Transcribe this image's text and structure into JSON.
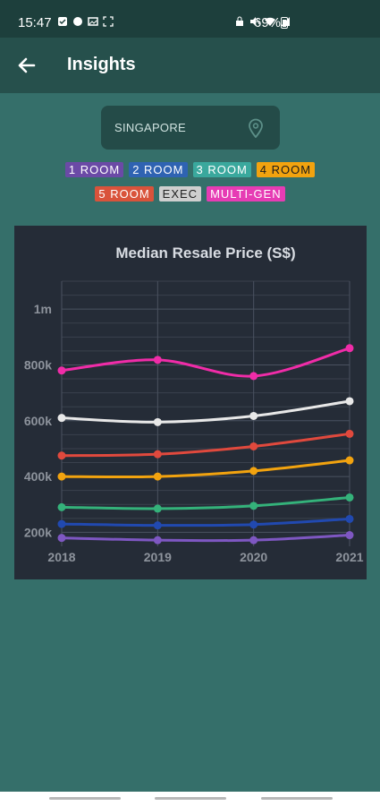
{
  "status": {
    "time": "15:47",
    "battery": "69%"
  },
  "header": {
    "title": "Insights"
  },
  "location": {
    "label": "SINGAPORE"
  },
  "legend": [
    {
      "label": "1 ROOM",
      "bg": "#6b4aa6",
      "fg": "#ffffff"
    },
    {
      "label": "2 ROOM",
      "bg": "#2f63b2",
      "fg": "#ffffff"
    },
    {
      "label": "3 ROOM",
      "bg": "#3aa89d",
      "fg": "#ffffff"
    },
    {
      "label": "4 ROOM",
      "bg": "#f2a30f",
      "fg": "#1b1b1b"
    },
    {
      "label": "5 ROOM",
      "bg": "#d9533b",
      "fg": "#ffffff"
    },
    {
      "label": "EXEC",
      "bg": "#cfcfcf",
      "fg": "#222222"
    },
    {
      "label": "MULTI-GEN",
      "bg": "#e63cb4",
      "fg": "#ffffff"
    }
  ],
  "chart_data": {
    "type": "line",
    "title": "Median Resale Price (S$)",
    "xlabel": "",
    "ylabel": "",
    "categories": [
      "2018",
      "2019",
      "2020",
      "2021"
    ],
    "ylim": [
      150000,
      1100000
    ],
    "yticks": [
      {
        "value": 200000,
        "label": "200k"
      },
      {
        "value": 400000,
        "label": "400k"
      },
      {
        "value": 600000,
        "label": "600k"
      },
      {
        "value": 800000,
        "label": "800k"
      },
      {
        "value": 1000000,
        "label": "1m"
      }
    ],
    "grid": true,
    "series": [
      {
        "name": "1 ROOM",
        "color": "#7e57c2",
        "values": [
          180000,
          172000,
          172000,
          190000
        ]
      },
      {
        "name": "2 ROOM",
        "color": "#2149b0",
        "values": [
          230000,
          225000,
          228000,
          248000
        ]
      },
      {
        "name": "3 ROOM",
        "color": "#34b27a",
        "values": [
          290000,
          285000,
          295000,
          325000
        ]
      },
      {
        "name": "4 ROOM",
        "color": "#f2a30f",
        "values": [
          400000,
          400000,
          420000,
          458000
        ]
      },
      {
        "name": "5 ROOM",
        "color": "#e0493d",
        "values": [
          475000,
          480000,
          508000,
          553000
        ]
      },
      {
        "name": "EXEC",
        "color": "#e8e8e8",
        "values": [
          610000,
          595000,
          617000,
          670000
        ]
      },
      {
        "name": "MULTI-GEN",
        "color": "#f02ca8",
        "values": [
          780000,
          818000,
          760000,
          860000
        ]
      }
    ]
  }
}
